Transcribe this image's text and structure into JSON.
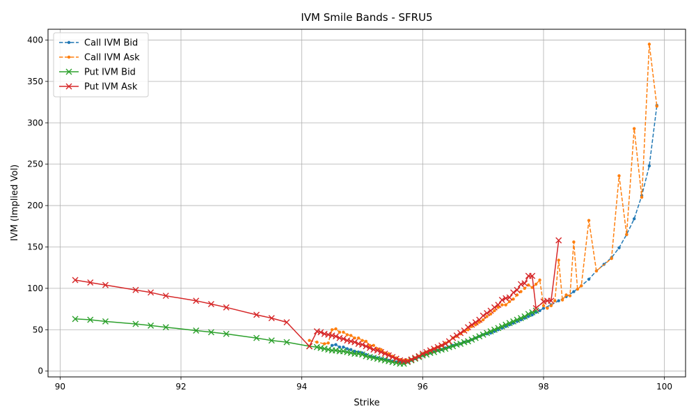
{
  "chart_data": {
    "type": "line",
    "title": "IVM Smile Bands - SFRU5",
    "xlabel": "Strike",
    "ylabel": "IVM (Implied Vol)",
    "xlim": [
      89.8,
      100.35
    ],
    "ylim": [
      -7,
      413
    ],
    "xticks": [
      90,
      92,
      94,
      96,
      98,
      100
    ],
    "yticks": [
      0,
      50,
      100,
      150,
      200,
      250,
      300,
      350,
      400
    ],
    "grid": true,
    "legend": "top-left",
    "series": [
      {
        "name": "Call IVM Bid",
        "color": "#1f77b4",
        "style": "dashed",
        "marker": "dot",
        "points": [
          [
            94.5,
            31
          ],
          [
            94.5625,
            32
          ],
          [
            94.625,
            29
          ],
          [
            94.6875,
            29
          ],
          [
            94.75,
            27
          ],
          [
            94.8125,
            26
          ],
          [
            94.875,
            24
          ],
          [
            94.9375,
            23
          ],
          [
            95.0,
            22
          ],
          [
            95.0625,
            20
          ],
          [
            95.125,
            18
          ],
          [
            95.1875,
            17
          ],
          [
            95.25,
            16
          ],
          [
            95.3125,
            15
          ],
          [
            95.375,
            14
          ],
          [
            95.4375,
            13
          ],
          [
            95.5,
            12
          ],
          [
            95.5625,
            11
          ],
          [
            95.625,
            11
          ],
          [
            95.6875,
            10
          ],
          [
            95.75,
            11
          ],
          [
            95.8125,
            13
          ],
          [
            95.875,
            15
          ],
          [
            95.9375,
            17
          ],
          [
            96.0,
            19
          ],
          [
            96.0625,
            21
          ],
          [
            96.125,
            22
          ],
          [
            96.1875,
            24
          ],
          [
            96.25,
            25
          ],
          [
            96.3125,
            26
          ],
          [
            96.375,
            28
          ],
          [
            96.4375,
            29
          ],
          [
            96.5,
            31
          ],
          [
            96.5625,
            32
          ],
          [
            96.625,
            33
          ],
          [
            96.6875,
            35
          ],
          [
            96.75,
            36
          ],
          [
            96.8125,
            38
          ],
          [
            96.875,
            40
          ],
          [
            96.9375,
            42
          ],
          [
            97.0,
            44
          ],
          [
            97.0625,
            45
          ],
          [
            97.125,
            46
          ],
          [
            97.1875,
            48
          ],
          [
            97.25,
            50
          ],
          [
            97.3125,
            52
          ],
          [
            97.375,
            54
          ],
          [
            97.4375,
            56
          ],
          [
            97.5,
            58
          ],
          [
            97.5625,
            60
          ],
          [
            97.625,
            62
          ],
          [
            97.6875,
            64
          ],
          [
            97.75,
            66
          ],
          [
            97.8125,
            68
          ],
          [
            97.875,
            71
          ],
          [
            97.9375,
            73
          ],
          [
            98.0,
            76
          ],
          [
            98.125,
            80
          ],
          [
            98.25,
            85
          ],
          [
            98.375,
            90
          ],
          [
            98.5,
            96
          ],
          [
            98.625,
            103
          ],
          [
            98.75,
            111
          ],
          [
            98.875,
            121
          ],
          [
            99.0,
            129
          ],
          [
            99.125,
            137
          ],
          [
            99.25,
            149
          ],
          [
            99.375,
            165
          ],
          [
            99.5,
            184
          ],
          [
            99.625,
            212
          ],
          [
            99.75,
            248
          ],
          [
            99.875,
            321
          ]
        ]
      },
      {
        "name": "Call IVM Ask",
        "color": "#ff7f0e",
        "style": "dashed",
        "marker": "dot",
        "points": [
          [
            94.125,
            37
          ],
          [
            94.25,
            35
          ],
          [
            94.375,
            33
          ],
          [
            94.4375,
            34
          ],
          [
            94.5,
            50
          ],
          [
            94.5625,
            51
          ],
          [
            94.625,
            47
          ],
          [
            94.6875,
            47
          ],
          [
            94.75,
            44
          ],
          [
            94.8125,
            43
          ],
          [
            94.875,
            40
          ],
          [
            94.9375,
            40
          ],
          [
            95.0,
            37
          ],
          [
            95.0625,
            36
          ],
          [
            95.125,
            31
          ],
          [
            95.1875,
            31
          ],
          [
            95.25,
            27
          ],
          [
            95.3125,
            26
          ],
          [
            95.375,
            22
          ],
          [
            95.4375,
            21
          ],
          [
            95.5,
            18
          ],
          [
            95.5625,
            16
          ],
          [
            95.625,
            14
          ],
          [
            95.6875,
            13
          ],
          [
            95.75,
            13
          ],
          [
            95.8125,
            14
          ],
          [
            95.875,
            16
          ],
          [
            95.9375,
            18
          ],
          [
            96.0,
            21
          ],
          [
            96.0625,
            23
          ],
          [
            96.125,
            25
          ],
          [
            96.1875,
            27
          ],
          [
            96.25,
            29
          ],
          [
            96.3125,
            31
          ],
          [
            96.375,
            34
          ],
          [
            96.4375,
            36
          ],
          [
            96.5,
            40
          ],
          [
            96.5625,
            42
          ],
          [
            96.625,
            45
          ],
          [
            96.6875,
            48
          ],
          [
            96.75,
            50
          ],
          [
            96.8125,
            54
          ],
          [
            96.875,
            56
          ],
          [
            96.9375,
            59
          ],
          [
            97.0,
            62
          ],
          [
            97.0625,
            66
          ],
          [
            97.125,
            69
          ],
          [
            97.1875,
            73
          ],
          [
            97.25,
            77
          ],
          [
            97.3125,
            80
          ],
          [
            97.375,
            80
          ],
          [
            97.4375,
            84
          ],
          [
            97.5,
            87
          ],
          [
            97.5625,
            92
          ],
          [
            97.625,
            96
          ],
          [
            97.6875,
            100
          ],
          [
            97.75,
            104
          ],
          [
            97.8125,
            101
          ],
          [
            97.875,
            105
          ],
          [
            97.9375,
            110
          ],
          [
            98.0,
            79
          ],
          [
            98.0625,
            76
          ],
          [
            98.125,
            79
          ],
          [
            98.1875,
            85
          ],
          [
            98.25,
            134
          ],
          [
            98.3125,
            86
          ],
          [
            98.375,
            92
          ],
          [
            98.4375,
            91
          ],
          [
            98.5,
            156
          ],
          [
            98.5625,
            99
          ],
          [
            98.625,
            103
          ],
          [
            98.75,
            182
          ],
          [
            98.875,
            121
          ],
          [
            99.125,
            136
          ],
          [
            99.25,
            236
          ],
          [
            99.375,
            165
          ],
          [
            99.5,
            293
          ],
          [
            99.625,
            210
          ],
          [
            99.75,
            395
          ],
          [
            99.875,
            320
          ]
        ]
      },
      {
        "name": "Put IVM Bid",
        "color": "#2ca02c",
        "style": "solid",
        "marker": "x",
        "points": [
          [
            90.25,
            63
          ],
          [
            90.5,
            62
          ],
          [
            90.75,
            60
          ],
          [
            91.25,
            57
          ],
          [
            91.5,
            55
          ],
          [
            91.75,
            53
          ],
          [
            92.25,
            49
          ],
          [
            92.5,
            47
          ],
          [
            92.75,
            45
          ],
          [
            93.25,
            40
          ],
          [
            93.5,
            37
          ],
          [
            93.75,
            35
          ],
          [
            94.125,
            30
          ],
          [
            94.25,
            29
          ],
          [
            94.3125,
            28
          ],
          [
            94.375,
            27
          ],
          [
            94.4375,
            26
          ],
          [
            94.5,
            25
          ],
          [
            94.5625,
            25
          ],
          [
            94.625,
            24
          ],
          [
            94.6875,
            24
          ],
          [
            94.75,
            23
          ],
          [
            94.8125,
            22
          ],
          [
            94.875,
            21
          ],
          [
            94.9375,
            21
          ],
          [
            95.0,
            20
          ],
          [
            95.0625,
            18
          ],
          [
            95.125,
            17
          ],
          [
            95.1875,
            16
          ],
          [
            95.25,
            15
          ],
          [
            95.3125,
            14
          ],
          [
            95.375,
            13
          ],
          [
            95.4375,
            12
          ],
          [
            95.5,
            11
          ],
          [
            95.5625,
            10
          ],
          [
            95.625,
            9
          ],
          [
            95.6875,
            9
          ],
          [
            95.75,
            11
          ],
          [
            95.8125,
            13
          ],
          [
            95.875,
            15
          ],
          [
            95.9375,
            17
          ],
          [
            96.0,
            19
          ],
          [
            96.0625,
            20
          ],
          [
            96.125,
            22
          ],
          [
            96.1875,
            23
          ],
          [
            96.25,
            25
          ],
          [
            96.3125,
            26
          ],
          [
            96.375,
            27
          ],
          [
            96.4375,
            29
          ],
          [
            96.5,
            30
          ],
          [
            96.5625,
            32
          ],
          [
            96.625,
            33
          ],
          [
            96.6875,
            35
          ],
          [
            96.75,
            36
          ],
          [
            96.8125,
            38
          ],
          [
            96.875,
            40
          ],
          [
            96.9375,
            42
          ],
          [
            97.0,
            44
          ],
          [
            97.0625,
            46
          ],
          [
            97.125,
            48
          ],
          [
            97.1875,
            50
          ],
          [
            97.25,
            52
          ],
          [
            97.3125,
            54
          ],
          [
            97.375,
            56
          ],
          [
            97.4375,
            58
          ],
          [
            97.5,
            60
          ],
          [
            97.5625,
            62
          ],
          [
            97.625,
            64
          ],
          [
            97.6875,
            66
          ],
          [
            97.75,
            69
          ],
          [
            97.8125,
            71
          ],
          [
            97.875,
            73
          ]
        ]
      },
      {
        "name": "Put IVM Ask",
        "color": "#d62728",
        "style": "solid",
        "marker": "x",
        "points": [
          [
            90.25,
            110
          ],
          [
            90.5,
            107
          ],
          [
            90.75,
            104
          ],
          [
            91.25,
            98
          ],
          [
            91.5,
            95
          ],
          [
            91.75,
            91
          ],
          [
            92.25,
            85
          ],
          [
            92.5,
            81
          ],
          [
            92.75,
            77
          ],
          [
            93.25,
            68
          ],
          [
            93.5,
            64
          ],
          [
            93.75,
            59
          ],
          [
            94.125,
            30
          ],
          [
            94.25,
            48
          ],
          [
            94.3125,
            47
          ],
          [
            94.375,
            45
          ],
          [
            94.4375,
            44
          ],
          [
            94.5,
            43
          ],
          [
            94.5625,
            42
          ],
          [
            94.625,
            40
          ],
          [
            94.6875,
            39
          ],
          [
            94.75,
            37
          ],
          [
            94.8125,
            36
          ],
          [
            94.875,
            35
          ],
          [
            94.9375,
            33
          ],
          [
            95.0,
            32
          ],
          [
            95.0625,
            30
          ],
          [
            95.125,
            28
          ],
          [
            95.1875,
            26
          ],
          [
            95.25,
            25
          ],
          [
            95.3125,
            23
          ],
          [
            95.375,
            21
          ],
          [
            95.4375,
            19
          ],
          [
            95.5,
            17
          ],
          [
            95.5625,
            15
          ],
          [
            95.625,
            13
          ],
          [
            95.6875,
            12
          ],
          [
            95.75,
            12
          ],
          [
            95.8125,
            14
          ],
          [
            95.875,
            16
          ],
          [
            95.9375,
            18
          ],
          [
            96.0,
            21
          ],
          [
            96.0625,
            23
          ],
          [
            96.125,
            25
          ],
          [
            96.1875,
            27
          ],
          [
            96.25,
            29
          ],
          [
            96.3125,
            31
          ],
          [
            96.375,
            33
          ],
          [
            96.4375,
            36
          ],
          [
            96.5,
            40
          ],
          [
            96.5625,
            43
          ],
          [
            96.625,
            46
          ],
          [
            96.6875,
            49
          ],
          [
            96.75,
            53
          ],
          [
            96.8125,
            56
          ],
          [
            96.875,
            59
          ],
          [
            96.9375,
            62
          ],
          [
            97.0,
            67
          ],
          [
            97.0625,
            70
          ],
          [
            97.125,
            73
          ],
          [
            97.1875,
            77
          ],
          [
            97.25,
            80
          ],
          [
            97.3125,
            86
          ],
          [
            97.375,
            88
          ],
          [
            97.4375,
            89
          ],
          [
            97.5,
            95
          ],
          [
            97.5625,
            98
          ],
          [
            97.625,
            105
          ],
          [
            97.6875,
            106
          ],
          [
            97.75,
            115
          ],
          [
            97.8125,
            115
          ],
          [
            97.875,
            76
          ],
          [
            98.0,
            84
          ],
          [
            98.0625,
            85
          ],
          [
            98.125,
            85
          ],
          [
            98.25,
            158
          ]
        ]
      }
    ]
  }
}
